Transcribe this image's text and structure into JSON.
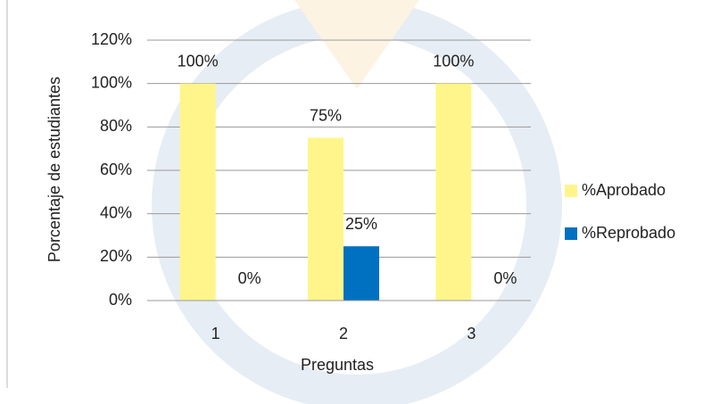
{
  "chart_data": {
    "type": "bar",
    "x_label": "Preguntas",
    "y_label": "Porcentaje de estudiantes",
    "categories": [
      "1",
      "2",
      "3"
    ],
    "series": [
      {
        "name": "%Aprobado",
        "color": "#fff58a",
        "values": [
          100,
          75,
          100
        ],
        "value_labels": [
          "100%",
          "75%",
          "100%"
        ]
      },
      {
        "name": "%Reprobado",
        "color": "#0070c0",
        "values": [
          0,
          25,
          0
        ],
        "value_labels": [
          "0%",
          "25%",
          "0%"
        ]
      }
    ],
    "ylim": [
      0,
      120
    ],
    "yticks": [
      {
        "value": 0,
        "label": "0%"
      },
      {
        "value": 20,
        "label": "20%"
      },
      {
        "value": 40,
        "label": "40%"
      },
      {
        "value": 60,
        "label": "60%"
      },
      {
        "value": 80,
        "label": "80%"
      },
      {
        "value": 100,
        "label": "100%"
      },
      {
        "value": 120,
        "label": "120%"
      }
    ],
    "grid": true,
    "legend": "right"
  }
}
